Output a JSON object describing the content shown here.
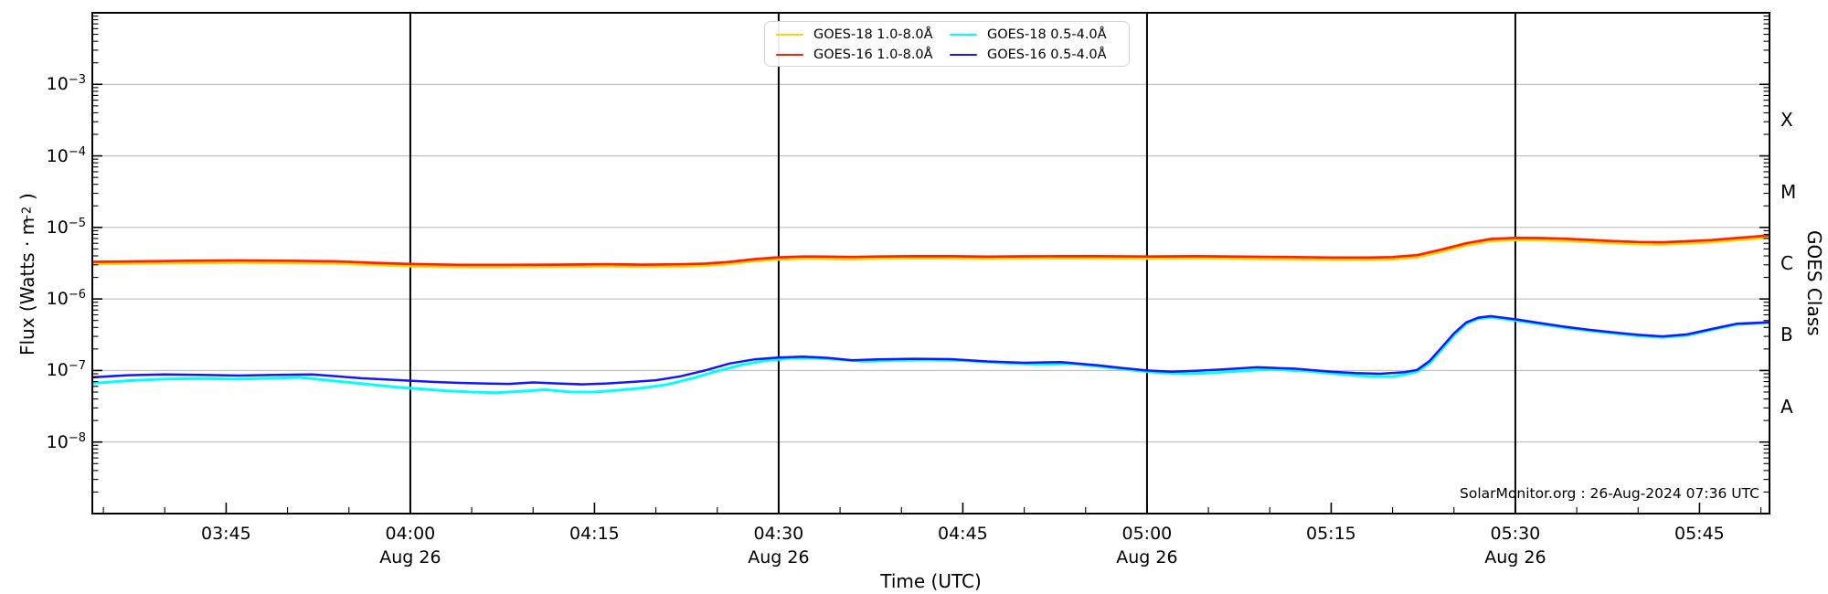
{
  "chart_data": {
    "type": "line",
    "title": "",
    "xlabel": "Time (UTC)",
    "ylabel": {
      "pre": "Flux (Watts · m",
      "sup": "−2",
      "post": ")"
    },
    "watermark": "SolarMonitor.org : 26-Aug-2024 07:36 UTC",
    "x_axis": {
      "unit": "minutes after 00:00 UTC, 26-Aug-2024",
      "range_minutes": [
        214.1,
        350.7
      ],
      "minor_step_minutes": 5,
      "day_line_label": "Aug 26",
      "day_lines_minutes": [
        240,
        270,
        300,
        330
      ],
      "major_ticks": [
        {
          "m": 225,
          "label": "03:45"
        },
        {
          "m": 240,
          "label": "04:00",
          "day": "Aug 26"
        },
        {
          "m": 255,
          "label": "04:15"
        },
        {
          "m": 270,
          "label": "04:30",
          "day": "Aug 26"
        },
        {
          "m": 285,
          "label": "04:45"
        },
        {
          "m": 300,
          "label": "05:00",
          "day": "Aug 26"
        },
        {
          "m": 315,
          "label": "05:15"
        },
        {
          "m": 330,
          "label": "05:30",
          "day": "Aug 26"
        },
        {
          "m": 345,
          "label": "05:45"
        }
      ]
    },
    "y_axis": {
      "scale": "log10",
      "range_exponents": [
        -9,
        -2
      ],
      "label_exponents": [
        -3,
        -4,
        -5,
        -6,
        -7,
        -8
      ],
      "gridline_exponents": [
        -3,
        -4,
        -5,
        -6,
        -7,
        -8
      ]
    },
    "right_axis": {
      "label": "GOES Class",
      "classes": [
        {
          "label": "X",
          "center_exponent": -3.5
        },
        {
          "label": "M",
          "center_exponent": -4.5
        },
        {
          "label": "C",
          "center_exponent": -5.5
        },
        {
          "label": "B",
          "center_exponent": -6.5
        },
        {
          "label": "A",
          "center_exponent": -7.5
        }
      ]
    },
    "legend": {
      "entries": [
        {
          "label": "GOES-18 1.0-8.0Å",
          "color": "#ffd400"
        },
        {
          "label": "GOES-16 1.0-8.0Å",
          "color": "#ff2200"
        },
        {
          "label": "GOES-18 0.5-4.0Å",
          "color": "#00ffff"
        },
        {
          "label": "GOES-16 0.5-4.0Å",
          "color": "#1515ff"
        }
      ]
    },
    "colors": {
      "grid": "#b4b4b4",
      "frame": "#000000",
      "day_line": "#000000"
    },
    "series": [
      {
        "name": "GOES-18 1.0-8.0Å",
        "color": "#ffd400",
        "width": 2.6,
        "points": [
          [
            214,
            3.07e-06
          ],
          [
            218,
            3.12e-06
          ],
          [
            222,
            3.18e-06
          ],
          [
            226,
            3.21e-06
          ],
          [
            230,
            3.18e-06
          ],
          [
            234,
            3.12e-06
          ],
          [
            237,
            2.98e-06
          ],
          [
            240,
            2.86e-06
          ],
          [
            244,
            2.79e-06
          ],
          [
            248,
            2.79e-06
          ],
          [
            252,
            2.81e-06
          ],
          [
            256,
            2.85e-06
          ],
          [
            259,
            2.81e-06
          ],
          [
            262,
            2.84e-06
          ],
          [
            264,
            2.9e-06
          ],
          [
            266,
            3.07e-06
          ],
          [
            268,
            3.35e-06
          ],
          [
            270,
            3.55e-06
          ],
          [
            272,
            3.65e-06
          ],
          [
            274,
            3.63e-06
          ],
          [
            276,
            3.59e-06
          ],
          [
            278,
            3.65e-06
          ],
          [
            281,
            3.68e-06
          ],
          [
            284,
            3.67e-06
          ],
          [
            287,
            3.63e-06
          ],
          [
            290,
            3.66e-06
          ],
          [
            293,
            3.68e-06
          ],
          [
            296,
            3.67e-06
          ],
          [
            300,
            3.65e-06
          ],
          [
            304,
            3.68e-06
          ],
          [
            308,
            3.63e-06
          ],
          [
            312,
            3.58e-06
          ],
          [
            315,
            3.53e-06
          ],
          [
            318,
            3.52e-06
          ],
          [
            320,
            3.58e-06
          ],
          [
            322,
            3.81e-06
          ],
          [
            324,
            4.56e-06
          ],
          [
            326,
            5.58e-06
          ],
          [
            328,
            6.42e-06
          ],
          [
            330,
            6.65e-06
          ],
          [
            332,
            6.6e-06
          ],
          [
            334,
            6.46e-06
          ],
          [
            336,
            6.23e-06
          ],
          [
            338,
            6e-06
          ],
          [
            340,
            5.81e-06
          ],
          [
            342,
            5.77e-06
          ],
          [
            344,
            5.95e-06
          ],
          [
            346,
            6.18e-06
          ],
          [
            348,
            6.6e-06
          ],
          [
            351,
            7.25e-06
          ]
        ]
      },
      {
        "name": "GOES-16 1.0-8.0Å",
        "color": "#ff2200",
        "width": 2.7,
        "points": [
          [
            214,
            3.3e-06
          ],
          [
            218,
            3.35e-06
          ],
          [
            222,
            3.42e-06
          ],
          [
            226,
            3.45e-06
          ],
          [
            230,
            3.42e-06
          ],
          [
            234,
            3.35e-06
          ],
          [
            237,
            3.2e-06
          ],
          [
            240,
            3.08e-06
          ],
          [
            244,
            3e-06
          ],
          [
            248,
            3e-06
          ],
          [
            252,
            3.02e-06
          ],
          [
            256,
            3.06e-06
          ],
          [
            259,
            3.02e-06
          ],
          [
            262,
            3.05e-06
          ],
          [
            264,
            3.12e-06
          ],
          [
            266,
            3.3e-06
          ],
          [
            268,
            3.6e-06
          ],
          [
            270,
            3.82e-06
          ],
          [
            272,
            3.92e-06
          ],
          [
            274,
            3.9e-06
          ],
          [
            276,
            3.86e-06
          ],
          [
            278,
            3.92e-06
          ],
          [
            281,
            3.96e-06
          ],
          [
            284,
            3.95e-06
          ],
          [
            287,
            3.9e-06
          ],
          [
            290,
            3.94e-06
          ],
          [
            293,
            3.96e-06
          ],
          [
            296,
            3.95e-06
          ],
          [
            300,
            3.92e-06
          ],
          [
            304,
            3.96e-06
          ],
          [
            308,
            3.9e-06
          ],
          [
            312,
            3.85e-06
          ],
          [
            315,
            3.8e-06
          ],
          [
            318,
            3.78e-06
          ],
          [
            320,
            3.85e-06
          ],
          [
            322,
            4.1e-06
          ],
          [
            324,
            4.9e-06
          ],
          [
            326,
            6e-06
          ],
          [
            328,
            6.9e-06
          ],
          [
            330,
            7.15e-06
          ],
          [
            332,
            7.1e-06
          ],
          [
            334,
            6.95e-06
          ],
          [
            336,
            6.7e-06
          ],
          [
            338,
            6.45e-06
          ],
          [
            340,
            6.25e-06
          ],
          [
            342,
            6.2e-06
          ],
          [
            344,
            6.4e-06
          ],
          [
            346,
            6.65e-06
          ],
          [
            348,
            7.1e-06
          ],
          [
            351,
            7.8e-06
          ]
        ]
      },
      {
        "name": "GOES-18 0.5-4.0Å",
        "color": "#00ffff",
        "width": 3.0,
        "points": [
          [
            214,
            6.6e-08
          ],
          [
            217,
            7.2e-08
          ],
          [
            220,
            7.6e-08
          ],
          [
            223,
            7.7e-08
          ],
          [
            226,
            7.6e-08
          ],
          [
            229,
            7.8e-08
          ],
          [
            231,
            8e-08
          ],
          [
            233,
            7.4e-08
          ],
          [
            235,
            6.8e-08
          ],
          [
            237,
            6.3e-08
          ],
          [
            239,
            5.8e-08
          ],
          [
            241,
            5.5e-08
          ],
          [
            243,
            5.2e-08
          ],
          [
            245,
            5e-08
          ],
          [
            247,
            4.9e-08
          ],
          [
            249,
            5.1e-08
          ],
          [
            251,
            5.4e-08
          ],
          [
            253,
            5e-08
          ],
          [
            255,
            5e-08
          ],
          [
            257,
            5.3e-08
          ],
          [
            259,
            5.7e-08
          ],
          [
            261,
            6.4e-08
          ],
          [
            263,
            7.8e-08
          ],
          [
            265,
            9.8e-08
          ],
          [
            267,
            1.2e-07
          ],
          [
            269,
            1.38e-07
          ],
          [
            271,
            1.48e-07
          ],
          [
            273,
            1.48e-07
          ],
          [
            275,
            1.42e-07
          ],
          [
            277,
            1.34e-07
          ],
          [
            279,
            1.38e-07
          ],
          [
            282,
            1.4e-07
          ],
          [
            285,
            1.38e-07
          ],
          [
            288,
            1.28e-07
          ],
          [
            291,
            1.22e-07
          ],
          [
            294,
            1.24e-07
          ],
          [
            297,
            1.1e-07
          ],
          [
            299,
            1e-07
          ],
          [
            301,
            9.3e-08
          ],
          [
            303,
            9e-08
          ],
          [
            305,
            9.2e-08
          ],
          [
            307,
            9.7e-08
          ],
          [
            310,
            1.04e-07
          ],
          [
            313,
            9.8e-08
          ],
          [
            316,
            8.8e-08
          ],
          [
            318,
            8.3e-08
          ],
          [
            320,
            8.2e-08
          ],
          [
            321,
            8.8e-08
          ],
          [
            322,
            9.6e-08
          ],
          [
            323,
            1.25e-07
          ],
          [
            324,
            1.95e-07
          ],
          [
            325,
            3.1e-07
          ],
          [
            326,
            4.5e-07
          ],
          [
            327,
            5.3e-07
          ],
          [
            328,
            5.55e-07
          ],
          [
            330,
            5e-07
          ],
          [
            332,
            4.45e-07
          ],
          [
            334,
            3.95e-07
          ],
          [
            336,
            3.6e-07
          ],
          [
            338,
            3.3e-07
          ],
          [
            340,
            3.05e-07
          ],
          [
            342,
            2.9e-07
          ],
          [
            344,
            3.1e-07
          ],
          [
            346,
            3.7e-07
          ],
          [
            348,
            4.4e-07
          ],
          [
            351,
            4.7e-07
          ]
        ]
      },
      {
        "name": "GOES-16 0.5-4.0Å",
        "color": "#1515ff",
        "width": 2.5,
        "points": [
          [
            214,
            8e-08
          ],
          [
            217,
            8.6e-08
          ],
          [
            220,
            8.8e-08
          ],
          [
            223,
            8.7e-08
          ],
          [
            226,
            8.5e-08
          ],
          [
            229,
            8.7e-08
          ],
          [
            232,
            8.8e-08
          ],
          [
            234,
            8.3e-08
          ],
          [
            236,
            7.8e-08
          ],
          [
            238,
            7.5e-08
          ],
          [
            240,
            7.2e-08
          ],
          [
            242,
            6.9e-08
          ],
          [
            244,
            6.7e-08
          ],
          [
            246,
            6.6e-08
          ],
          [
            248,
            6.5e-08
          ],
          [
            250,
            6.8e-08
          ],
          [
            252,
            6.6e-08
          ],
          [
            254,
            6.4e-08
          ],
          [
            256,
            6.6e-08
          ],
          [
            258,
            6.9e-08
          ],
          [
            260,
            7.3e-08
          ],
          [
            262,
            8.3e-08
          ],
          [
            264,
            1e-07
          ],
          [
            266,
            1.25e-07
          ],
          [
            268,
            1.43e-07
          ],
          [
            270,
            1.52e-07
          ],
          [
            272,
            1.56e-07
          ],
          [
            274,
            1.5e-07
          ],
          [
            276,
            1.39e-07
          ],
          [
            278,
            1.43e-07
          ],
          [
            281,
            1.46e-07
          ],
          [
            284,
            1.44e-07
          ],
          [
            287,
            1.34e-07
          ],
          [
            290,
            1.28e-07
          ],
          [
            293,
            1.31e-07
          ],
          [
            296,
            1.18e-07
          ],
          [
            298,
            1.08e-07
          ],
          [
            300,
            1e-07
          ],
          [
            302,
            9.6e-08
          ],
          [
            304,
            9.9e-08
          ],
          [
            306,
            1.03e-07
          ],
          [
            309,
            1.11e-07
          ],
          [
            312,
            1.06e-07
          ],
          [
            315,
            9.6e-08
          ],
          [
            317,
            9.2e-08
          ],
          [
            319,
            9e-08
          ],
          [
            321,
            9.5e-08
          ],
          [
            322,
            1.02e-07
          ],
          [
            323,
            1.35e-07
          ],
          [
            324,
            2.1e-07
          ],
          [
            325,
            3.3e-07
          ],
          [
            326,
            4.7e-07
          ],
          [
            327,
            5.5e-07
          ],
          [
            328,
            5.75e-07
          ],
          [
            330,
            5.2e-07
          ],
          [
            332,
            4.6e-07
          ],
          [
            334,
            4.1e-07
          ],
          [
            336,
            3.7e-07
          ],
          [
            338,
            3.4e-07
          ],
          [
            340,
            3.15e-07
          ],
          [
            342,
            3e-07
          ],
          [
            344,
            3.2e-07
          ],
          [
            346,
            3.8e-07
          ],
          [
            348,
            4.5e-07
          ],
          [
            351,
            4.75e-07
          ]
        ]
      }
    ]
  }
}
